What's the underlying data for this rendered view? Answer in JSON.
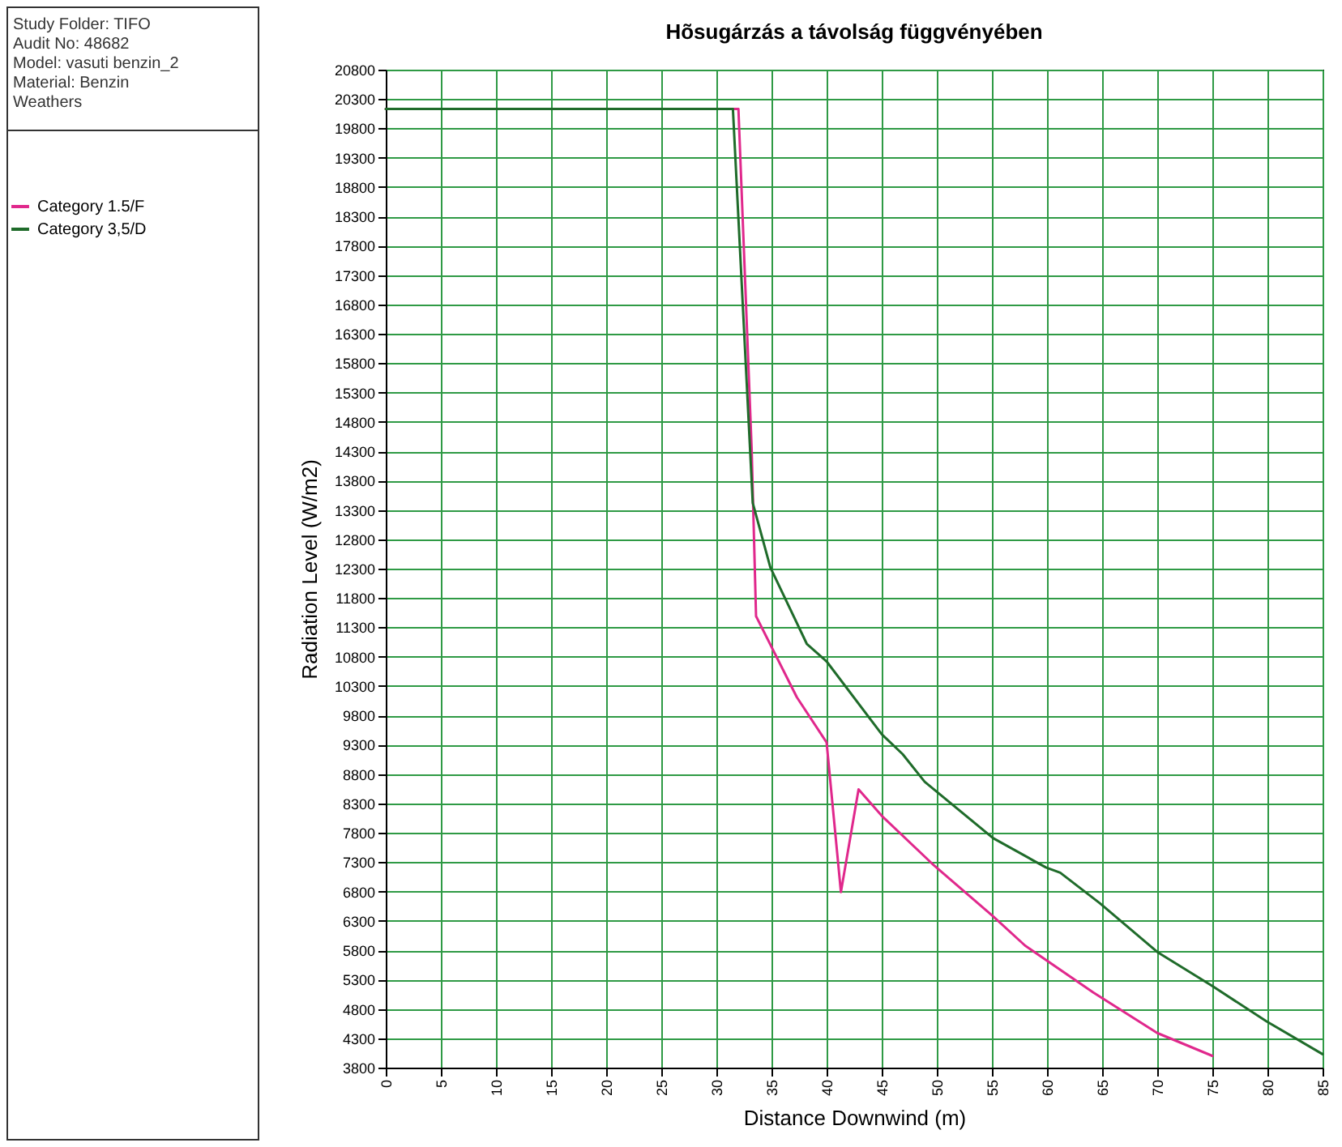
{
  "chart_data": {
    "type": "line",
    "title": "Hõsugárzás a távolság függvényében",
    "xlabel": "Distance Downwind (m)",
    "ylabel": "Radiation Level (W/m2)",
    "annotations": [
      "Study Folder: TIFO",
      "Audit No: 48682",
      "Model: vasuti benzin_2",
      "Material: Benzin",
      "Weathers"
    ],
    "xlim": [
      0,
      85
    ],
    "xticks": [
      0,
      5,
      10,
      15,
      20,
      25,
      30,
      35,
      40,
      45,
      50,
      55,
      60,
      65,
      70,
      75,
      80,
      85
    ],
    "ylim": [
      3800,
      20800
    ],
    "yticks": [
      3800,
      4300,
      4800,
      5300,
      5800,
      6300,
      6800,
      7300,
      7800,
      8300,
      8800,
      9300,
      9800,
      10300,
      10800,
      11300,
      11800,
      12300,
      12800,
      13300,
      13800,
      14300,
      14800,
      15300,
      15800,
      16300,
      16800,
      17300,
      17800,
      18300,
      18800,
      19300,
      19800,
      20300,
      20800
    ],
    "grid": true,
    "legend": "left",
    "series": [
      {
        "name": "Category 1.5/F",
        "color": "#e0288c",
        "x": [
          0,
          32.0,
          33.2,
          33.6,
          37.3,
          40.0,
          41.3,
          42.9,
          45.0,
          49.6,
          55.1,
          58.0,
          64.2,
          70.0,
          75.0
        ],
        "values": [
          20130,
          20130,
          14340,
          11490,
          10110,
          9340,
          6790,
          8540,
          8090,
          7270,
          6380,
          5880,
          5080,
          4390,
          4000
        ]
      },
      {
        "name": "Category 3,5/D",
        "color": "#1f6b2a",
        "x": [
          0,
          31.5,
          33.3,
          34.9,
          38.2,
          40.0,
          45.0,
          46.9,
          48.9,
          55.1,
          59.9,
          61.2,
          64.8,
          70.0,
          75.0,
          79.9,
          85.0
        ],
        "values": [
          20130,
          20130,
          13420,
          12320,
          11020,
          10720,
          9480,
          9140,
          8670,
          7710,
          7210,
          7120,
          6600,
          5770,
          5190,
          4590,
          4030
        ]
      }
    ]
  }
}
